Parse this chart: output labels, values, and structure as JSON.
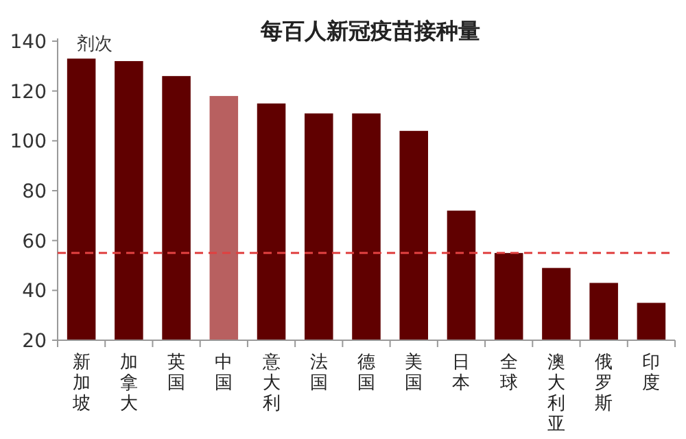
{
  "chart_data": {
    "type": "bar",
    "title": "每百人新冠疫苗接种量",
    "ylabel": "剂次",
    "categories": [
      "新加坡",
      "加拿大",
      "英国",
      "中国",
      "意大利",
      "法国",
      "德国",
      "美国",
      "日本",
      "全球",
      "澳大利亚",
      "俄罗斯",
      "印度"
    ],
    "values": [
      133,
      132,
      126,
      118,
      115,
      111,
      111,
      104,
      72,
      55,
      49,
      43,
      35
    ],
    "colors": [
      "#600000",
      "#600000",
      "#600000",
      "#b86060",
      "#600000",
      "#600000",
      "#600000",
      "#600000",
      "#600000",
      "#600000",
      "#600000",
      "#600000",
      "#600000"
    ],
    "ylim": [
      20,
      140
    ],
    "yticks": [
      20,
      40,
      60,
      80,
      100,
      120,
      140
    ],
    "grid": false,
    "ref_lines": [
      {
        "axis": "y",
        "value": 55,
        "color": "#e04040",
        "line_style": "dashed"
      }
    ]
  }
}
